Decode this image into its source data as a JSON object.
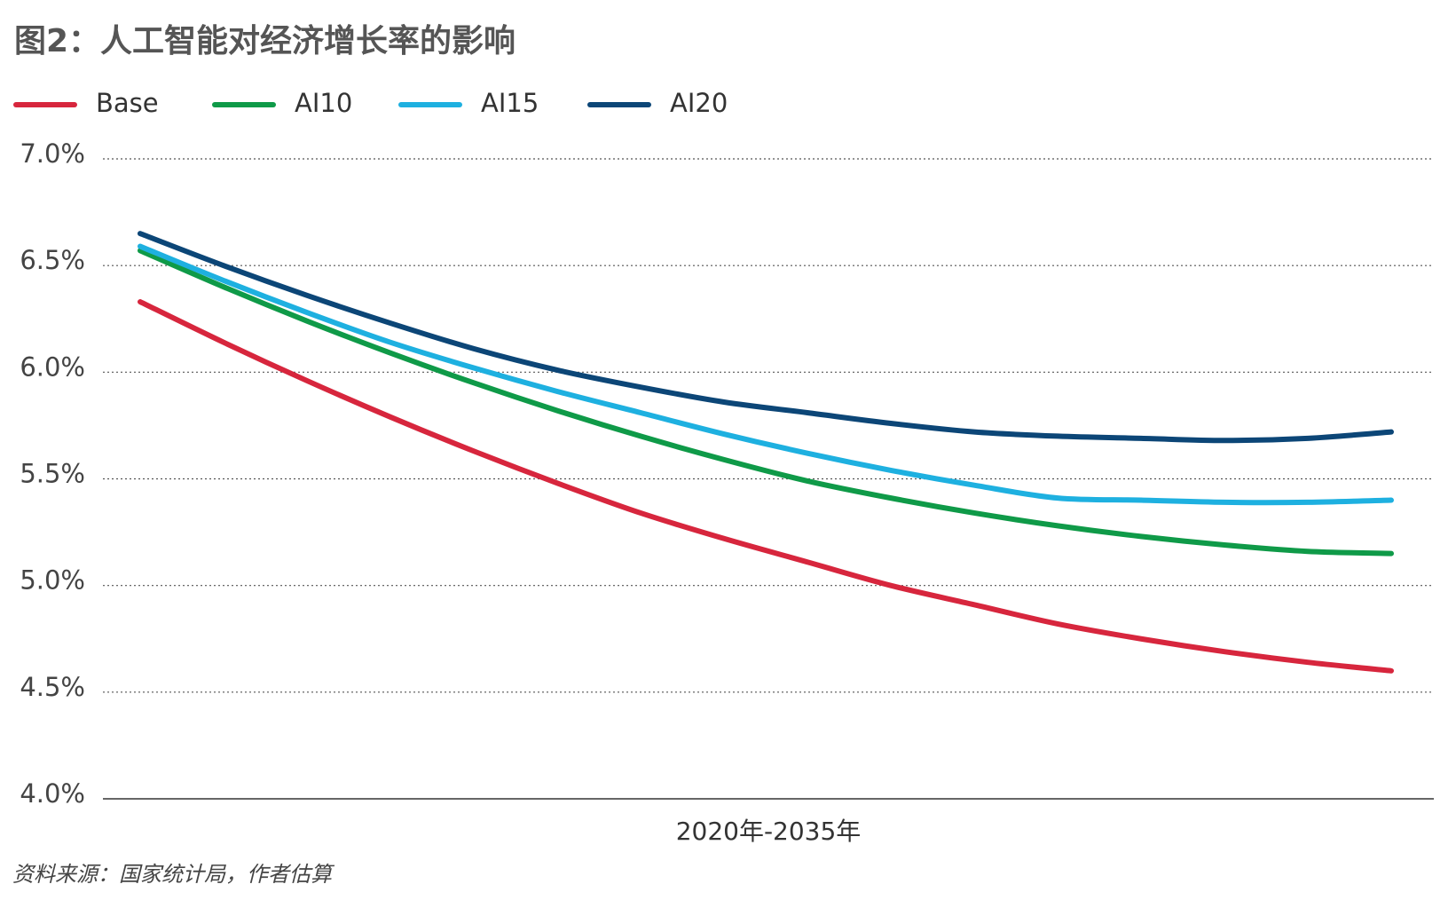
{
  "chart_data": {
    "type": "line",
    "title": "图2：人工智能对经济增长率的影响",
    "x_label": "2020年-2035年",
    "source": "资料来源：国家统计局，作者估算",
    "categories": [
      null,
      null,
      null,
      null,
      null,
      null,
      null,
      null,
      null,
      null,
      null,
      null,
      null,
      null,
      null,
      null
    ],
    "series": [
      {
        "name": "Base",
        "color": "#d7263d",
        "values": [
          6.33,
          6.14,
          5.96,
          5.79,
          5.63,
          5.48,
          5.34,
          5.22,
          5.11,
          5.0,
          4.91,
          4.82,
          4.75,
          4.69,
          4.64,
          4.6
        ]
      },
      {
        "name": "AI10",
        "color": "#0f9a48",
        "values": [
          6.57,
          6.4,
          6.24,
          6.09,
          5.95,
          5.82,
          5.7,
          5.59,
          5.49,
          5.41,
          5.34,
          5.28,
          5.23,
          5.19,
          5.16,
          5.15
        ]
      },
      {
        "name": "AI15",
        "color": "#1eb0e0",
        "values": [
          6.59,
          6.43,
          6.28,
          6.14,
          6.02,
          5.91,
          5.81,
          5.71,
          5.62,
          5.54,
          5.47,
          5.41,
          5.4,
          5.39,
          5.39,
          5.4
        ]
      },
      {
        "name": "AI20",
        "color": "#0c4677",
        "values": [
          6.65,
          6.5,
          6.36,
          6.23,
          6.11,
          6.01,
          5.93,
          5.86,
          5.81,
          5.76,
          5.72,
          5.7,
          5.69,
          5.68,
          5.69,
          5.72
        ]
      }
    ],
    "ylim": [
      4.0,
      7.0
    ],
    "yticks": [
      {
        "value": 4.0,
        "label": "4.0%"
      },
      {
        "value": 4.5,
        "label": "4.5%"
      },
      {
        "value": 5.0,
        "label": "5.0%"
      },
      {
        "value": 5.5,
        "label": "5.5%"
      },
      {
        "value": 6.0,
        "label": "6.0%"
      },
      {
        "value": 6.5,
        "label": "6.5%"
      },
      {
        "value": 7.0,
        "label": "7.0%"
      }
    ],
    "grid": true,
    "legend": "top-left"
  }
}
